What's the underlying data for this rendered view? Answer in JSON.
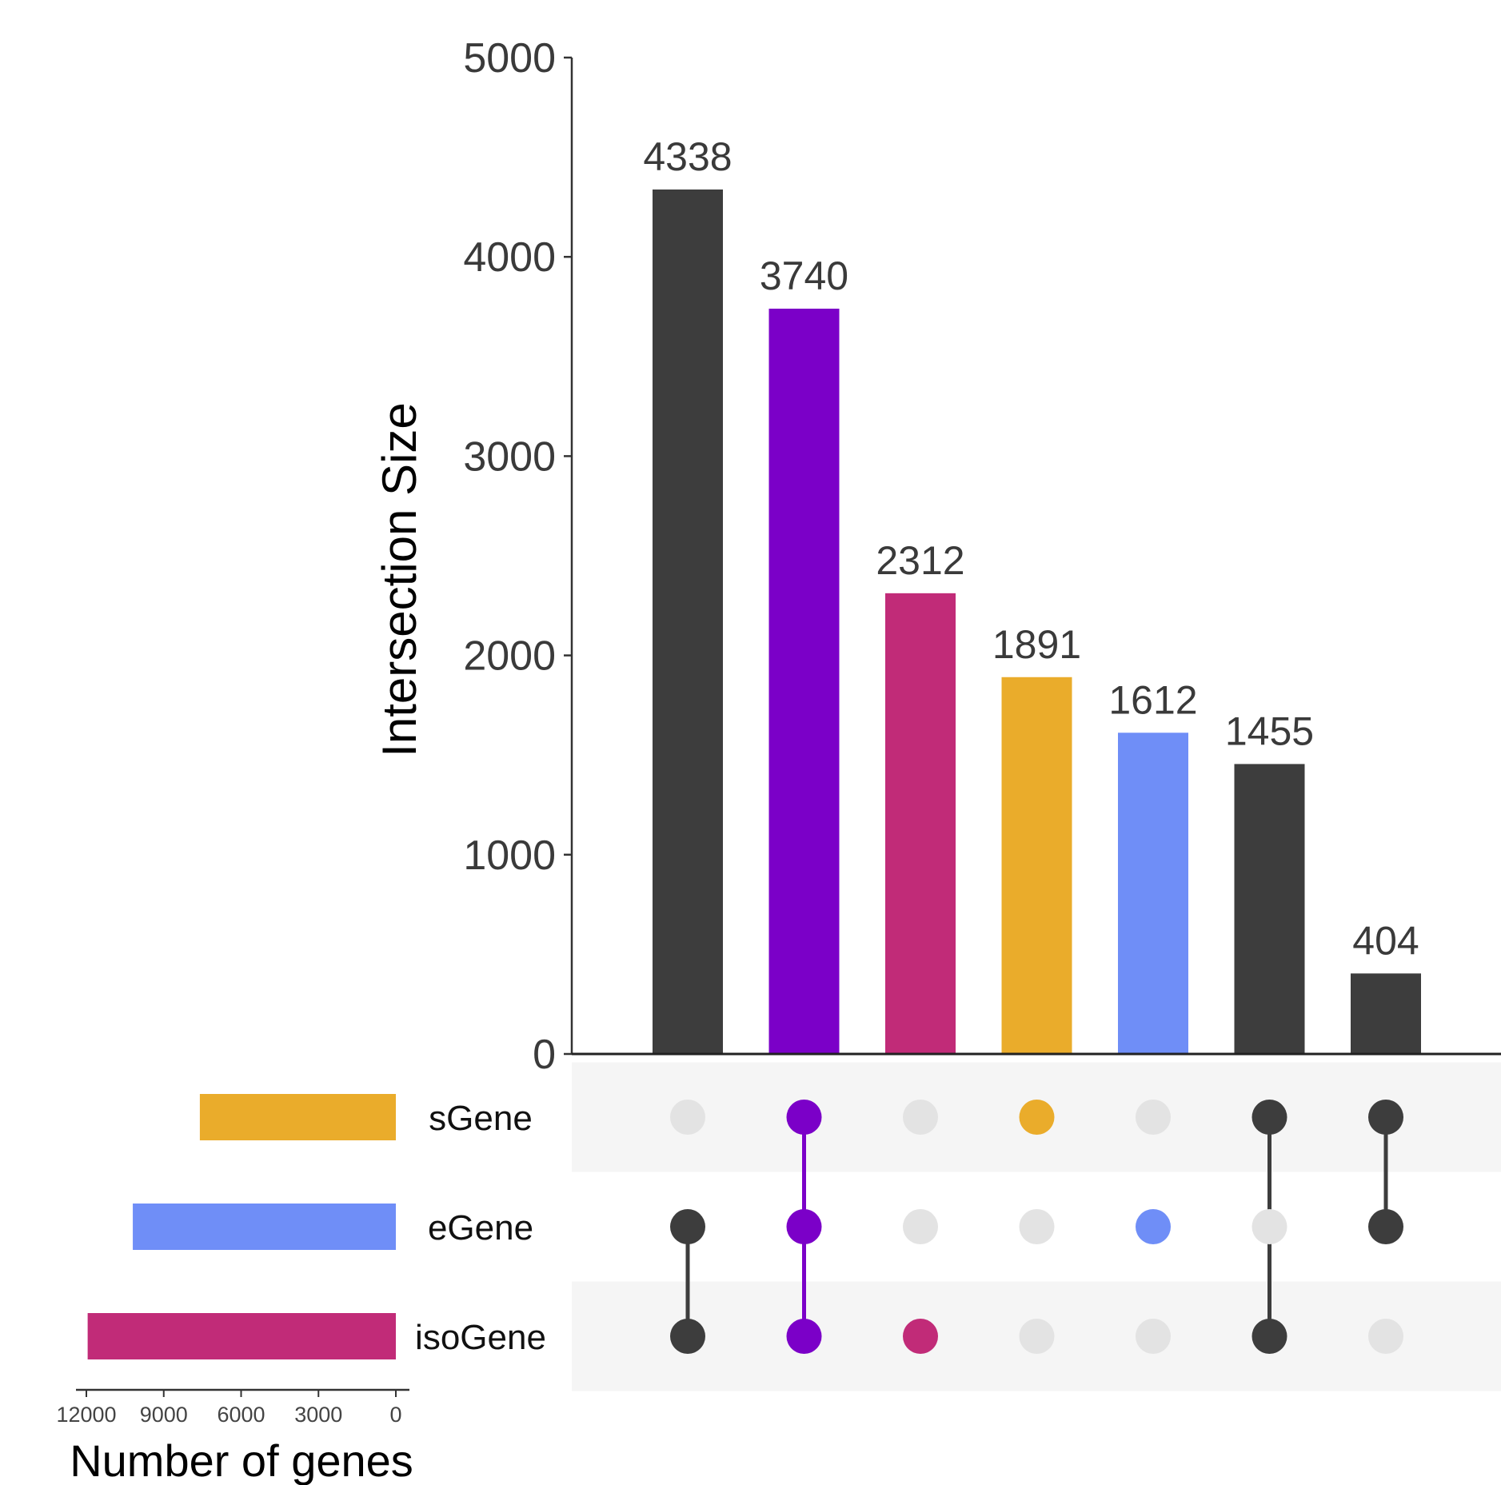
{
  "chart_data": {
    "type": "bar",
    "subtype": "upset",
    "ylabel": "Intersection Size",
    "ylim": [
      0,
      5000
    ],
    "yticks": [
      0,
      1000,
      2000,
      3000,
      4000,
      5000
    ],
    "sets": [
      "sGene",
      "eGene",
      "isoGene"
    ],
    "intersections": [
      {
        "members": [
          "eGene",
          "isoGene"
        ],
        "value": 4338,
        "color": "#3d3d3d"
      },
      {
        "members": [
          "sGene",
          "eGene",
          "isoGene"
        ],
        "value": 3740,
        "color": "#7b00c8"
      },
      {
        "members": [
          "isoGene"
        ],
        "value": 2312,
        "color": "#c12b78"
      },
      {
        "members": [
          "sGene"
        ],
        "value": 1891,
        "color": "#eaac2b"
      },
      {
        "members": [
          "eGene"
        ],
        "value": 1612,
        "color": "#6f8ef7"
      },
      {
        "members": [
          "sGene",
          "isoGene"
        ],
        "value": 1455,
        "color": "#3d3d3d"
      },
      {
        "members": [
          "sGene",
          "eGene"
        ],
        "value": 404,
        "color": "#3d3d3d"
      }
    ],
    "set_sizes": {
      "xlabel": "Number of genes",
      "xlim": [
        12000,
        0
      ],
      "xticks": [
        12000,
        9000,
        6000,
        3000,
        0
      ],
      "values": [
        {
          "name": "sGene",
          "value": 7600,
          "color": "#eaac2b"
        },
        {
          "name": "eGene",
          "value": 10200,
          "color": "#6f8ef7"
        },
        {
          "name": "isoGene",
          "value": 11950,
          "color": "#c12b78"
        }
      ]
    },
    "inactive_dot_color": "#e3e3e3",
    "stripe_color": "#f5f5f5",
    "grid": false
  }
}
